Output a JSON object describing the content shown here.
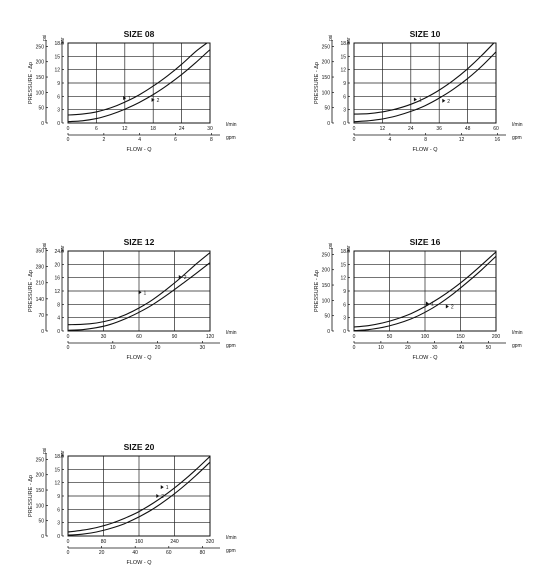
{
  "chart_data": [
    {
      "type": "line",
      "title": "SIZE 08",
      "ylabel": "PRESSURE - Δp",
      "xlabel": "FLOW - Q",
      "y_unit_left": "psi",
      "y_unit_right": "bar",
      "x_unit_top": "l/min",
      "x_unit_bottom": "gpm",
      "xlim": [
        0,
        30
      ],
      "ylim": [
        0,
        18
      ],
      "x_ticks": [
        0,
        6,
        12,
        18,
        24,
        30
      ],
      "x_tick_labels": [
        "0",
        "6",
        "12",
        "18",
        "24",
        "30"
      ],
      "y_ticks": [
        0,
        3,
        6,
        9,
        12,
        15,
        18
      ],
      "y_tick_labels": [
        "0",
        "3",
        "6",
        "9",
        "12",
        "15",
        "18"
      ],
      "psi_ticks": [
        0,
        50,
        100,
        150,
        200,
        250
      ],
      "psi_tick_labels": [
        "0",
        "50",
        "100",
        "150",
        "200",
        "250"
      ],
      "gpm_ticks": [
        0,
        2,
        4,
        6,
        8
      ],
      "gpm_tick_labels": [
        "0",
        "2",
        "4",
        "6",
        "8"
      ],
      "series": [
        {
          "name": "1",
          "x": [
            0,
            3,
            6,
            9,
            12,
            15,
            18,
            21,
            24,
            27,
            30
          ],
          "y": [
            1.8,
            2.0,
            2.5,
            3.4,
            4.7,
            6.3,
            8.3,
            10.6,
            13.2,
            16.1,
            18.5
          ]
        },
        {
          "name": "2",
          "x": [
            0,
            3,
            6,
            9,
            12,
            15,
            18,
            21,
            24,
            27,
            30
          ],
          "y": [
            0.3,
            0.5,
            1.0,
            1.9,
            3.1,
            4.6,
            6.4,
            8.5,
            10.9,
            13.6,
            16.5
          ]
        }
      ],
      "series_labels": [
        {
          "text": "1",
          "x": 12.5,
          "y": 5.6
        },
        {
          "text": "2",
          "x": 18.5,
          "y": 5.2
        }
      ]
    },
    {
      "type": "line",
      "title": "SIZE 10",
      "ylabel": "PRESSURE - Δp",
      "xlabel": "FLOW - Q",
      "y_unit_left": "psi",
      "y_unit_right": "bar",
      "x_unit_top": "l/min",
      "x_unit_bottom": "gpm",
      "xlim": [
        0,
        60
      ],
      "ylim": [
        0,
        18
      ],
      "x_ticks": [
        0,
        12,
        24,
        36,
        48,
        60
      ],
      "x_tick_labels": [
        "0",
        "12",
        "24",
        "36",
        "48",
        "60"
      ],
      "y_ticks": [
        0,
        3,
        6,
        9,
        12,
        15,
        18
      ],
      "y_tick_labels": [
        "0",
        "3",
        "6",
        "9",
        "12",
        "15",
        "18"
      ],
      "psi_ticks": [
        0,
        50,
        100,
        150,
        200,
        250
      ],
      "psi_tick_labels": [
        "0",
        "50",
        "100",
        "150",
        "200",
        "250"
      ],
      "gpm_ticks": [
        0,
        4,
        8,
        12,
        16
      ],
      "gpm_tick_labels": [
        "0",
        "4",
        "8",
        "12",
        "16"
      ],
      "series": [
        {
          "name": "1",
          "x": [
            0,
            6,
            12,
            18,
            24,
            30,
            36,
            42,
            48,
            54,
            60
          ],
          "y": [
            2.0,
            2.1,
            2.5,
            3.2,
            4.2,
            5.6,
            7.4,
            9.6,
            12.2,
            15.2,
            18.5
          ]
        },
        {
          "name": "2",
          "x": [
            0,
            6,
            12,
            18,
            24,
            30,
            36,
            42,
            48,
            54,
            60
          ],
          "y": [
            0.3,
            0.5,
            0.9,
            1.6,
            2.6,
            3.9,
            5.6,
            7.6,
            10.0,
            12.8,
            16.0
          ]
        }
      ],
      "series_labels": [
        {
          "text": "1",
          "x": 27,
          "y": 5.3
        },
        {
          "text": "2",
          "x": 39,
          "y": 5.0
        }
      ]
    },
    {
      "type": "line",
      "title": "SIZE 12",
      "ylabel": "PRESSURE - Δp",
      "xlabel": "FLOW - Q",
      "y_unit_left": "psi",
      "y_unit_right": "bar",
      "x_unit_top": "l/min",
      "x_unit_bottom": "gpm",
      "xlim": [
        0,
        120
      ],
      "ylim": [
        0,
        24
      ],
      "x_ticks": [
        0,
        30,
        60,
        90,
        120
      ],
      "x_tick_labels": [
        "0",
        "30",
        "60",
        "90",
        "120"
      ],
      "y_ticks": [
        0,
        4,
        8,
        12,
        16,
        20,
        24
      ],
      "y_tick_labels": [
        "0",
        "4",
        "8",
        "12",
        "16",
        "20",
        "24"
      ],
      "psi_ticks": [
        0,
        70,
        140,
        210,
        280,
        350
      ],
      "psi_tick_labels": [
        "0",
        "70",
        "140",
        "210",
        "280",
        "350"
      ],
      "gpm_ticks": [
        0,
        10,
        20,
        30
      ],
      "gpm_tick_labels": [
        "0",
        "10",
        "20",
        "30"
      ],
      "series": [
        {
          "name": "1",
          "x": [
            0,
            12,
            24,
            36,
            48,
            60,
            72,
            84,
            96,
            108,
            120
          ],
          "y": [
            1.9,
            2.0,
            2.4,
            3.3,
            4.8,
            6.9,
            9.5,
            12.7,
            16.2,
            20.0,
            23.5
          ]
        },
        {
          "name": "2",
          "x": [
            0,
            12,
            24,
            36,
            48,
            60,
            72,
            84,
            96,
            108,
            120
          ],
          "y": [
            0.2,
            0.4,
            1.0,
            2.0,
            3.6,
            5.6,
            8.0,
            10.9,
            14.0,
            17.2,
            20.5
          ]
        }
      ],
      "series_labels": [
        {
          "text": "1",
          "x": 63,
          "y": 11.6
        },
        {
          "text": "2",
          "x": 97,
          "y": 16.2
        }
      ]
    },
    {
      "type": "line",
      "title": "SIZE 16",
      "ylabel": "PRESSURE - Δp",
      "xlabel": "FLOW - Q",
      "y_unit_left": "psi",
      "y_unit_right": "bar",
      "x_unit_top": "l/min",
      "x_unit_bottom": "gpm",
      "xlim": [
        0,
        200
      ],
      "ylim": [
        0,
        18
      ],
      "x_ticks": [
        0,
        50,
        100,
        150,
        200
      ],
      "x_tick_labels": [
        "0",
        "50",
        "100",
        "150",
        "200"
      ],
      "y_ticks": [
        0,
        3,
        6,
        9,
        12,
        15,
        18
      ],
      "y_tick_labels": [
        "0",
        "3",
        "6",
        "9",
        "12",
        "15",
        "18"
      ],
      "psi_ticks": [
        0,
        50,
        100,
        150,
        200,
        250
      ],
      "psi_tick_labels": [
        "0",
        "50",
        "100",
        "150",
        "200",
        "250"
      ],
      "gpm_ticks": [
        0,
        10,
        20,
        30,
        40,
        50
      ],
      "gpm_tick_labels": [
        "0",
        "10",
        "20",
        "30",
        "40",
        "50"
      ],
      "series": [
        {
          "name": "1",
          "x": [
            0,
            20,
            40,
            60,
            80,
            100,
            120,
            140,
            160,
            180,
            200
          ],
          "y": [
            0.9,
            1.2,
            1.8,
            2.7,
            3.9,
            5.5,
            7.4,
            9.6,
            12.1,
            14.9,
            17.8
          ]
        },
        {
          "name": "2",
          "x": [
            0,
            20,
            40,
            60,
            80,
            100,
            120,
            140,
            160,
            180,
            200
          ],
          "y": [
            0.1,
            0.3,
            0.8,
            1.6,
            2.7,
            4.2,
            6.1,
            8.4,
            11.0,
            13.8,
            16.8
          ]
        }
      ],
      "series_labels": [
        {
          "text": "1",
          "x": 107,
          "y": 6.2
        },
        {
          "text": "2",
          "x": 135,
          "y": 5.5
        }
      ]
    },
    {
      "type": "line",
      "title": "SIZE 20",
      "ylabel": "PRESSURE - Δp",
      "xlabel": "FLOW - Q",
      "y_unit_left": "psi",
      "y_unit_right": "bar",
      "x_unit_top": "l/min",
      "x_unit_bottom": "gpm",
      "xlim": [
        0,
        320
      ],
      "ylim": [
        0,
        18
      ],
      "x_ticks": [
        0,
        80,
        160,
        240,
        320
      ],
      "x_tick_labels": [
        "0",
        "80",
        "160",
        "240",
        "320"
      ],
      "y_ticks": [
        0,
        3,
        6,
        9,
        12,
        15,
        18
      ],
      "y_tick_labels": [
        "0",
        "3",
        "6",
        "9",
        "12",
        "15",
        "18"
      ],
      "psi_ticks": [
        0,
        50,
        100,
        150,
        200,
        250
      ],
      "psi_tick_labels": [
        "0",
        "50",
        "100",
        "150",
        "200",
        "250"
      ],
      "gpm_ticks": [
        0,
        20,
        40,
        60,
        80
      ],
      "gpm_tick_labels": [
        "0",
        "20",
        "40",
        "60",
        "80"
      ],
      "series": [
        {
          "name": "1",
          "x": [
            0,
            32,
            64,
            96,
            128,
            160,
            192,
            224,
            256,
            288,
            320
          ],
          "y": [
            0.9,
            1.3,
            1.9,
            2.8,
            4.0,
            5.5,
            7.4,
            9.6,
            12.1,
            14.9,
            17.9
          ]
        },
        {
          "name": "2",
          "x": [
            0,
            32,
            64,
            96,
            128,
            160,
            192,
            224,
            256,
            288,
            320
          ],
          "y": [
            0.2,
            0.4,
            0.9,
            1.7,
            2.8,
            4.3,
            6.1,
            8.3,
            10.8,
            13.6,
            16.6
          ]
        }
      ],
      "series_labels": [
        {
          "text": "1",
          "x": 218,
          "y": 11.0
        },
        {
          "text": "2",
          "x": 208,
          "y": 9.0
        }
      ]
    }
  ]
}
